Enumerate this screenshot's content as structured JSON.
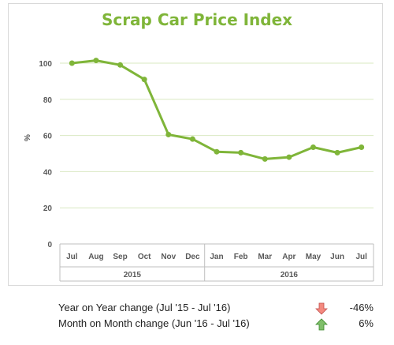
{
  "chart_data": {
    "type": "line",
    "title": "Scrap Car Price Index",
    "ylabel": "%",
    "xlabel": "",
    "ylim": [
      0,
      110
    ],
    "yticks": [
      0,
      20,
      40,
      60,
      80,
      100
    ],
    "grid": true,
    "categories": [
      "Jul",
      "Aug",
      "Sep",
      "Oct",
      "Nov",
      "Dec",
      "Jan",
      "Feb",
      "Mar",
      "Apr",
      "May",
      "Jun",
      "Jul"
    ],
    "groups": [
      {
        "label": "2015",
        "count": 6
      },
      {
        "label": "2016",
        "count": 7
      }
    ],
    "series": [
      {
        "values": [
          100,
          101.5,
          99,
          91,
          60.5,
          58,
          51,
          50.5,
          47,
          48,
          53.5,
          50.5,
          53.5
        ]
      }
    ],
    "colors": {
      "line": "#7fb539",
      "title": "#7fb539",
      "grid": "#d9e8c2",
      "axis": "#bfbfbf"
    }
  },
  "summary": {
    "yoy": {
      "label": "Year on Year change (Jul '15 - Jul '16)",
      "value": "-46%",
      "direction": "down",
      "icon": "arrow-down-icon",
      "color": "#f4897f"
    },
    "mom": {
      "label": "Month on Month change (Jun '16 - Jul '16)",
      "value": "6%",
      "direction": "up",
      "icon": "arrow-up-icon",
      "color": "#7fbf6a"
    }
  }
}
